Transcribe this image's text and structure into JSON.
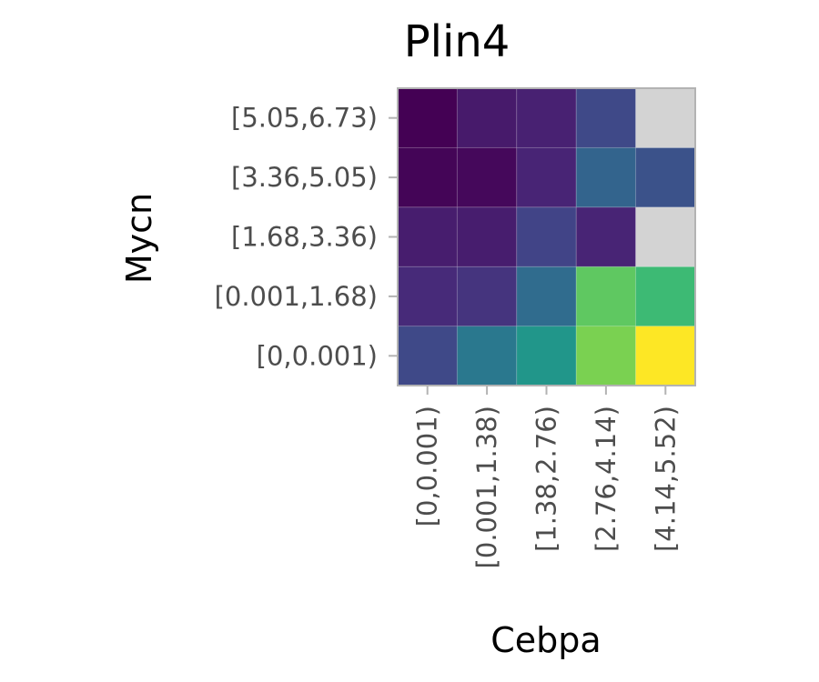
{
  "chart_data": {
    "type": "heatmap",
    "title": "Plin4",
    "xlabel": "Cebpa",
    "ylabel": "Mycn",
    "x_categories": [
      "[0,0.001)",
      "[0.001,1.38)",
      "[1.38,2.76)",
      "[2.76,4.14)",
      "[4.14,5.52)"
    ],
    "y_categories": [
      "[0,0.001)",
      "[0.001,1.68)",
      "[1.68,3.36)",
      "[3.36,5.05)",
      "[5.05,6.73)"
    ],
    "colorscale": "viridis",
    "na_color": "#d3d3d3",
    "values": [
      [
        0.22,
        0.4,
        0.52,
        0.8,
        1.0
      ],
      [
        0.12,
        0.15,
        0.35,
        0.75,
        0.68
      ],
      [
        0.08,
        0.08,
        0.2,
        0.1,
        null
      ],
      [
        0.01,
        0.02,
        0.1,
        0.32,
        0.25
      ],
      [
        0.0,
        0.07,
        0.09,
        0.22,
        null
      ]
    ],
    "legend": "none",
    "grid": false
  }
}
